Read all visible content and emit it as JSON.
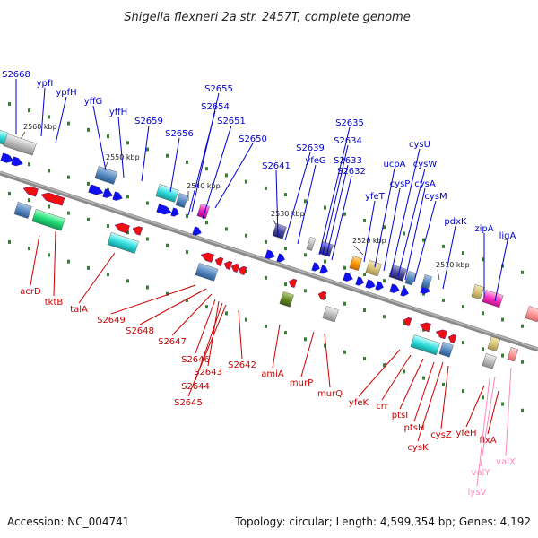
{
  "title": "Shigella flexneri 2a str. 2457T, complete genome",
  "footer": {
    "accession": "Accession: NC_004741",
    "summary": "Topology: circular; Length: 4,599,354 bp; Genes: 4,192"
  },
  "colors": {
    "backbone": "#8a8a8a",
    "forward_label": "#0000cc",
    "reverse_label": "#cc0000",
    "rna_label": "#ff88bb",
    "forward_gene": "#1010ee",
    "reverse_gene": "#ee1010",
    "tick": "#2a8a2a"
  },
  "scale_labels": [
    "2560 kbp",
    "2550 kbp",
    "2540 kbp",
    "2530 kbp",
    "2520 kbp",
    "2510 kbp"
  ],
  "forward_labels": [
    "S2668",
    "ypfI",
    "ypfH",
    "yffG",
    "yffH",
    "S2659",
    "S2656",
    "S2655",
    "S2654",
    "S2651",
    "S2650",
    "S2641",
    "S2639",
    "yfeG",
    "S2635",
    "S2634",
    "S2633",
    "S2632",
    "yfeT",
    "ucpA",
    "cysP",
    "cysU",
    "cysW",
    "cysA",
    "cysM",
    "pdxK",
    "zipA",
    "ligA"
  ],
  "reverse_labels": [
    "acrD",
    "tktB",
    "talA",
    "S2649",
    "S2648",
    "S2647",
    "S2646",
    "S2643",
    "S2644",
    "S2645",
    "S2642",
    "amiA",
    "murP",
    "murQ",
    "yfeK",
    "crr",
    "ptsI",
    "ptsH",
    "cysK",
    "cysZ",
    "yfeH",
    "fIxA"
  ],
  "rna_labels": [
    "valY",
    "lysV",
    "valX"
  ]
}
